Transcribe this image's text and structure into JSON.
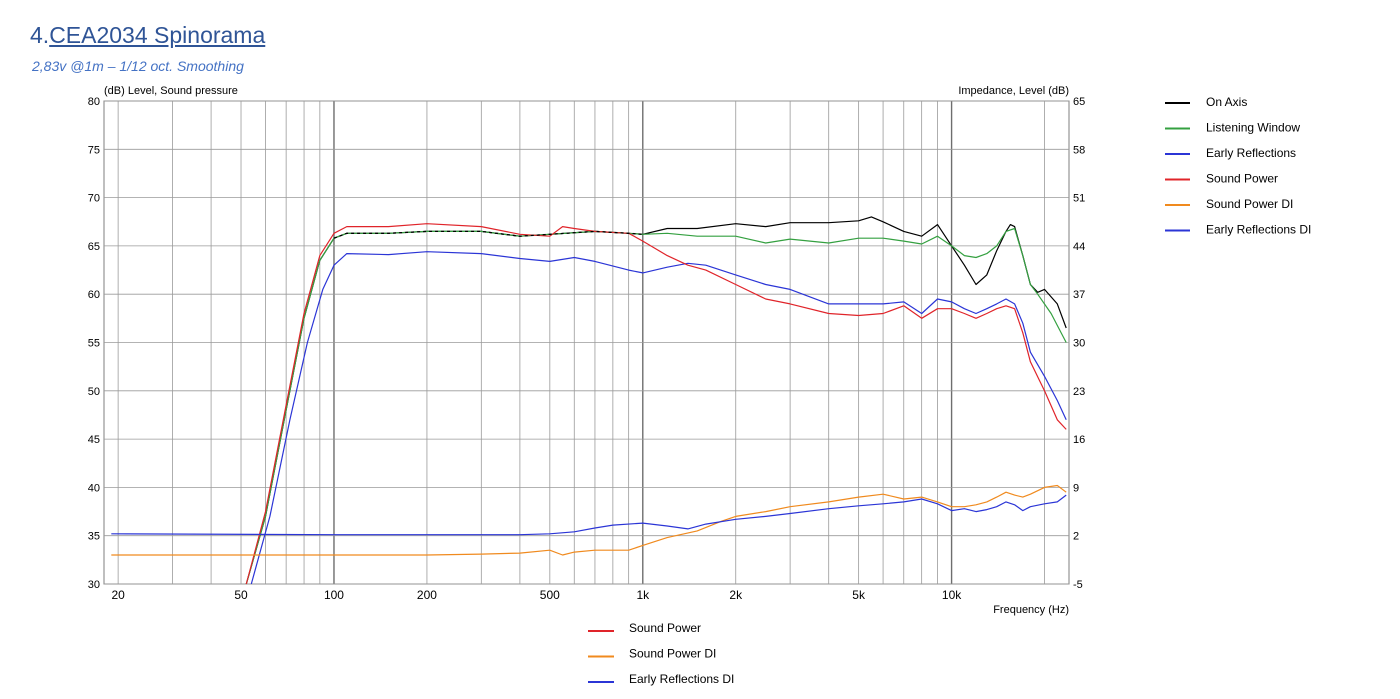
{
  "heading": {
    "prefix": "4.",
    "title": "CEA2034 Spinorama"
  },
  "subheading": "2,83v @1m – 1/12 oct. Smoothing",
  "chart_data": {
    "type": "line",
    "ylabel": "(dB)  Level, Sound pressure",
    "y2label": "Impedance, Level  (dB)",
    "xlabel": "Frequency  (Hz)",
    "xscale": "log",
    "xlim": [
      18,
      24000
    ],
    "ylim": [
      30,
      80
    ],
    "y2lim": [
      -5,
      65
    ],
    "grid": true,
    "xticks": [
      {
        "v": 20,
        "label": "20"
      },
      {
        "v": 50,
        "label": "50"
      },
      {
        "v": 100,
        "label": "100"
      },
      {
        "v": 200,
        "label": "200"
      },
      {
        "v": 500,
        "label": "500"
      },
      {
        "v": 1000,
        "label": "1k"
      },
      {
        "v": 2000,
        "label": "2k"
      },
      {
        "v": 5000,
        "label": "5k"
      },
      {
        "v": 10000,
        "label": "10k"
      }
    ],
    "yticks": [
      30,
      35,
      40,
      45,
      50,
      55,
      60,
      65,
      70,
      75,
      80
    ],
    "y2ticks": [
      "-5",
      "2",
      "9",
      "16",
      "23",
      "30",
      "37",
      "44",
      "51",
      "58",
      "65"
    ],
    "series": [
      {
        "name": "On Axis",
        "color": "#000000",
        "legend": "right",
        "dashed": false,
        "points": [
          [
            52,
            30
          ],
          [
            60,
            37
          ],
          [
            70,
            48
          ],
          [
            80,
            57.5
          ],
          [
            90,
            63.5
          ],
          [
            100,
            65.8
          ],
          [
            110,
            66.3
          ],
          [
            150,
            66.3
          ],
          [
            200,
            66.5
          ],
          [
            300,
            66.5
          ],
          [
            400,
            66
          ],
          [
            500,
            66.2
          ],
          [
            700,
            66.5
          ],
          [
            900,
            66.3
          ],
          [
            1000,
            66.2
          ],
          [
            1200,
            66.8
          ],
          [
            1500,
            66.8
          ],
          [
            2000,
            67.3
          ],
          [
            2500,
            67
          ],
          [
            3000,
            67.4
          ],
          [
            4000,
            67.4
          ],
          [
            5000,
            67.6
          ],
          [
            5500,
            68
          ],
          [
            6000,
            67.5
          ],
          [
            7000,
            66.5
          ],
          [
            8000,
            66
          ],
          [
            9000,
            67.2
          ],
          [
            10000,
            65
          ],
          [
            11000,
            63
          ],
          [
            12000,
            61
          ],
          [
            13000,
            62
          ],
          [
            14000,
            64.5
          ],
          [
            15000,
            66.5
          ],
          [
            15500,
            67.2
          ],
          [
            16000,
            67
          ],
          [
            17000,
            64
          ],
          [
            18000,
            61
          ],
          [
            19000,
            60.2
          ],
          [
            20000,
            60.5
          ],
          [
            22000,
            59
          ],
          [
            23500,
            56.5
          ]
        ]
      },
      {
        "name": "Listening Window",
        "color": "#34a040",
        "legend": "right",
        "dashed": false,
        "points": [
          [
            52,
            30
          ],
          [
            60,
            37
          ],
          [
            70,
            48
          ],
          [
            80,
            57.5
          ],
          [
            90,
            63.5
          ],
          [
            100,
            65.8
          ],
          [
            110,
            66.3
          ],
          [
            150,
            66.3
          ],
          [
            200,
            66.5
          ],
          [
            300,
            66.5
          ],
          [
            400,
            66
          ],
          [
            500,
            66.2
          ],
          [
            700,
            66.5
          ],
          [
            900,
            66.3
          ],
          [
            1000,
            66.2
          ],
          [
            1200,
            66.3
          ],
          [
            1500,
            66
          ],
          [
            2000,
            66
          ],
          [
            2500,
            65.3
          ],
          [
            3000,
            65.7
          ],
          [
            4000,
            65.3
          ],
          [
            5000,
            65.8
          ],
          [
            6000,
            65.8
          ],
          [
            7000,
            65.5
          ],
          [
            8000,
            65.2
          ],
          [
            9000,
            66
          ],
          [
            10000,
            65
          ],
          [
            11000,
            64
          ],
          [
            12000,
            63.8
          ],
          [
            13000,
            64.2
          ],
          [
            14000,
            65
          ],
          [
            15000,
            66.5
          ],
          [
            16000,
            66.8
          ],
          [
            17000,
            64
          ],
          [
            18000,
            61
          ],
          [
            19000,
            60
          ],
          [
            21000,
            58
          ],
          [
            23500,
            55
          ]
        ]
      },
      {
        "name": "Early Reflections",
        "color": "#2b35d6",
        "legend": "right",
        "dashed": false,
        "points": [
          [
            54,
            30
          ],
          [
            62,
            37
          ],
          [
            72,
            47
          ],
          [
            82,
            55
          ],
          [
            92,
            60.5
          ],
          [
            100,
            63
          ],
          [
            110,
            64.2
          ],
          [
            150,
            64.1
          ],
          [
            200,
            64.4
          ],
          [
            300,
            64.2
          ],
          [
            400,
            63.7
          ],
          [
            500,
            63.4
          ],
          [
            600,
            63.8
          ],
          [
            700,
            63.4
          ],
          [
            900,
            62.5
          ],
          [
            1000,
            62.2
          ],
          [
            1200,
            62.8
          ],
          [
            1400,
            63.2
          ],
          [
            1600,
            63
          ],
          [
            2000,
            62
          ],
          [
            2500,
            61
          ],
          [
            3000,
            60.5
          ],
          [
            4000,
            59
          ],
          [
            5000,
            59
          ],
          [
            6000,
            59
          ],
          [
            7000,
            59.2
          ],
          [
            8000,
            58
          ],
          [
            9000,
            59.5
          ],
          [
            10000,
            59.2
          ],
          [
            11000,
            58.5
          ],
          [
            12000,
            58
          ],
          [
            13000,
            58.5
          ],
          [
            14000,
            59
          ],
          [
            15000,
            59.5
          ],
          [
            16000,
            59
          ],
          [
            17000,
            57
          ],
          [
            18000,
            54
          ],
          [
            20000,
            51.5
          ],
          [
            22000,
            49
          ],
          [
            23500,
            47
          ]
        ]
      },
      {
        "name": "Sound Power",
        "color": "#e0242a",
        "legend": "both",
        "dashed": false,
        "points": [
          [
            52,
            30
          ],
          [
            60,
            37.5
          ],
          [
            70,
            48.5
          ],
          [
            80,
            58
          ],
          [
            90,
            64
          ],
          [
            100,
            66.3
          ],
          [
            110,
            67
          ],
          [
            150,
            67
          ],
          [
            200,
            67.3
          ],
          [
            300,
            67
          ],
          [
            400,
            66.2
          ],
          [
            500,
            66
          ],
          [
            550,
            67
          ],
          [
            600,
            66.8
          ],
          [
            700,
            66.5
          ],
          [
            900,
            66.3
          ],
          [
            1000,
            65.5
          ],
          [
            1200,
            64
          ],
          [
            1400,
            63
          ],
          [
            1600,
            62.5
          ],
          [
            2000,
            61
          ],
          [
            2500,
            59.5
          ],
          [
            3000,
            59
          ],
          [
            4000,
            58
          ],
          [
            5000,
            57.8
          ],
          [
            6000,
            58
          ],
          [
            7000,
            58.8
          ],
          [
            8000,
            57.5
          ],
          [
            9000,
            58.5
          ],
          [
            10000,
            58.5
          ],
          [
            11000,
            58
          ],
          [
            12000,
            57.5
          ],
          [
            13000,
            58
          ],
          [
            14000,
            58.5
          ],
          [
            15000,
            58.8
          ],
          [
            16000,
            58.5
          ],
          [
            17000,
            56
          ],
          [
            18000,
            53
          ],
          [
            20000,
            50
          ],
          [
            22000,
            47
          ],
          [
            23500,
            46
          ]
        ]
      },
      {
        "name": "Sound Power DI",
        "color": "#f08a1e",
        "legend": "both",
        "dashed": false,
        "points": [
          [
            19,
            33
          ],
          [
            100,
            33
          ],
          [
            200,
            33
          ],
          [
            300,
            33.1
          ],
          [
            400,
            33.2
          ],
          [
            500,
            33.5
          ],
          [
            550,
            33
          ],
          [
            600,
            33.3
          ],
          [
            700,
            33.5
          ],
          [
            900,
            33.5
          ],
          [
            1000,
            34
          ],
          [
            1200,
            34.8
          ],
          [
            1500,
            35.5
          ],
          [
            1800,
            36.5
          ],
          [
            2000,
            37
          ],
          [
            2500,
            37.5
          ],
          [
            3000,
            38
          ],
          [
            4000,
            38.5
          ],
          [
            5000,
            39
          ],
          [
            6000,
            39.3
          ],
          [
            7000,
            38.8
          ],
          [
            8000,
            39
          ],
          [
            9000,
            38.5
          ],
          [
            10000,
            38
          ],
          [
            11000,
            38
          ],
          [
            12000,
            38.2
          ],
          [
            13000,
            38.5
          ],
          [
            14000,
            39
          ],
          [
            15000,
            39.5
          ],
          [
            16000,
            39.2
          ],
          [
            17000,
            39
          ],
          [
            18000,
            39.3
          ],
          [
            20000,
            40
          ],
          [
            22000,
            40.2
          ],
          [
            23500,
            39.5
          ]
        ]
      },
      {
        "name": "Early Reflections DI",
        "color": "#2b35d6",
        "legend": "both",
        "dashed": false,
        "points": [
          [
            19,
            35.2
          ],
          [
            100,
            35.1
          ],
          [
            200,
            35.1
          ],
          [
            300,
            35.1
          ],
          [
            400,
            35.1
          ],
          [
            500,
            35.2
          ],
          [
            600,
            35.4
          ],
          [
            700,
            35.8
          ],
          [
            800,
            36.1
          ],
          [
            1000,
            36.3
          ],
          [
            1200,
            36
          ],
          [
            1400,
            35.7
          ],
          [
            1600,
            36.2
          ],
          [
            2000,
            36.7
          ],
          [
            2500,
            37
          ],
          [
            3000,
            37.3
          ],
          [
            4000,
            37.8
          ],
          [
            5000,
            38.1
          ],
          [
            6000,
            38.3
          ],
          [
            7000,
            38.5
          ],
          [
            8000,
            38.8
          ],
          [
            9000,
            38.3
          ],
          [
            10000,
            37.6
          ],
          [
            11000,
            37.8
          ],
          [
            12000,
            37.5
          ],
          [
            13000,
            37.7
          ],
          [
            14000,
            38
          ],
          [
            15000,
            38.5
          ],
          [
            16000,
            38.2
          ],
          [
            17000,
            37.6
          ],
          [
            18000,
            38
          ],
          [
            20000,
            38.3
          ],
          [
            22000,
            38.5
          ],
          [
            23500,
            39.2
          ]
        ]
      },
      {
        "name": "",
        "color": "#000000",
        "legend": "none",
        "dashed": true,
        "points": [
          [
            100,
            65.8
          ],
          [
            110,
            66.3
          ],
          [
            150,
            66.3
          ],
          [
            200,
            66.5
          ],
          [
            300,
            66.5
          ],
          [
            400,
            66
          ],
          [
            500,
            66.2
          ],
          [
            700,
            66.5
          ],
          [
            900,
            66.3
          ],
          [
            1000,
            66.2
          ]
        ]
      }
    ]
  }
}
